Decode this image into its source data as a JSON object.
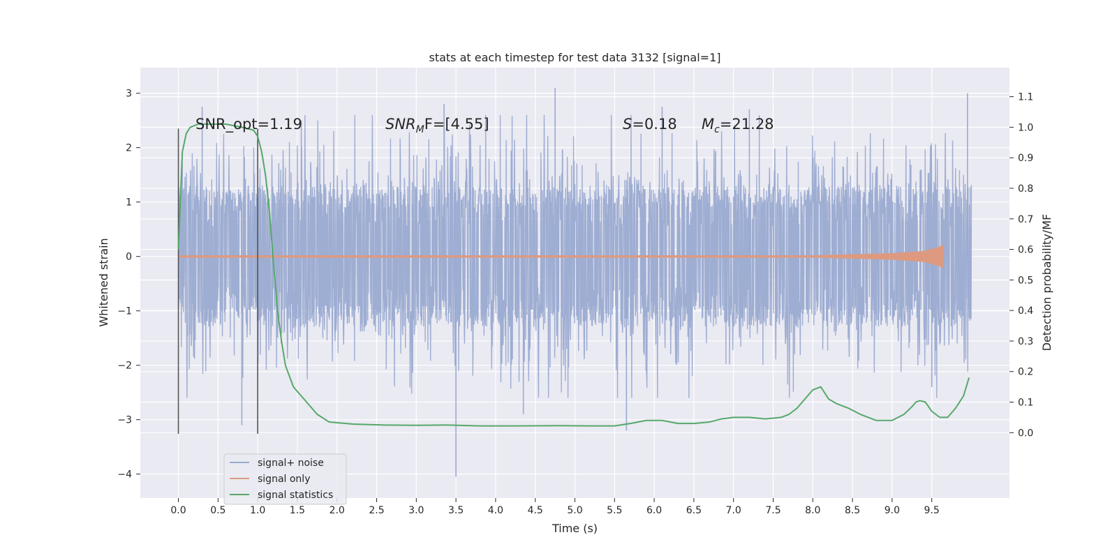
{
  "chart_data": {
    "type": "line",
    "title": "stats at each timestep for test data 3132 [signal=1]",
    "xlabel": "Time (s)",
    "ylabel": "Whitened strain",
    "y2label": "Detection probability/MF",
    "xlim": [
      -0.48,
      10.48
    ],
    "ylim": [
      -4.44,
      3.47
    ],
    "y2lim": [
      -0.214,
      1.195
    ],
    "x_ticks": [
      "0.0",
      "0.5",
      "1.0",
      "1.5",
      "2.0",
      "2.5",
      "3.0",
      "3.5",
      "4.0",
      "4.5",
      "5.0",
      "5.5",
      "6.0",
      "6.5",
      "7.0",
      "7.5",
      "8.0",
      "8.5",
      "9.0",
      "9.5"
    ],
    "x_tick_values": [
      0,
      0.5,
      1,
      1.5,
      2,
      2.5,
      3,
      3.5,
      4,
      4.5,
      5,
      5.5,
      6,
      6.5,
      7,
      7.5,
      8,
      8.5,
      9,
      9.5
    ],
    "y_ticks": [
      "3",
      "2",
      "1",
      "0",
      "−1",
      "−2",
      "−3",
      "−4"
    ],
    "y_tick_values": [
      3,
      2,
      1,
      0,
      -1,
      -2,
      -3,
      -4
    ],
    "y2_ticks": [
      "1.1",
      "1.0",
      "0.9",
      "0.8",
      "0.7",
      "0.6",
      "0.5",
      "0.4",
      "0.3",
      "0.2",
      "0.1",
      "0.0"
    ],
    "y2_tick_values": [
      1.1,
      1.0,
      0.9,
      0.8,
      0.7,
      0.6,
      0.5,
      0.4,
      0.3,
      0.2,
      0.1,
      0.0
    ],
    "grid": true,
    "legend_position": "lower-left",
    "annotations": {
      "snr_opt": "SNR_opt=1.19",
      "snr_mf_base": "SNR",
      "snr_mf_sub": "M",
      "snr_mf_rest": "F=[4.55]",
      "s_sym": "S",
      "s_val": "=0.18",
      "mc_sym": "M",
      "mc_sub": "c",
      "mc_val": "=21.28"
    },
    "vlines": [
      0.0,
      1.0
    ],
    "vline_range": [
      -3.26,
      2.35
    ],
    "series": [
      {
        "name": "signal+ noise",
        "color": "#9AAAD0",
        "x_range": [
          0.0,
          10.0
        ],
        "typical_envelope": [
          -1.3,
          1.3
        ],
        "peak_values": [
          {
            "x": 0.3,
            "y": 2.75
          },
          {
            "x": 0.8,
            "y": -3.1
          },
          {
            "x": 1.55,
            "y": 2.5
          },
          {
            "x": 3.35,
            "y": 2.8
          },
          {
            "x": 3.5,
            "y": -4.05
          },
          {
            "x": 4.35,
            "y": -2.9
          },
          {
            "x": 4.75,
            "y": 3.1
          },
          {
            "x": 5.65,
            "y": -3.2
          },
          {
            "x": 6.1,
            "y": 2.75
          },
          {
            "x": 7.2,
            "y": 2.7
          },
          {
            "x": 9.5,
            "y": -2.4
          },
          {
            "x": 9.95,
            "y": 3.0
          }
        ]
      },
      {
        "name": "signal only",
        "color": "#DD9A80",
        "x_range": [
          0.0,
          9.65
        ],
        "envelope_points": [
          [
            0.0,
            0.02
          ],
          [
            8.0,
            0.02
          ],
          [
            9.0,
            0.06
          ],
          [
            9.4,
            0.1
          ],
          [
            9.6,
            0.18
          ],
          [
            9.65,
            0.22
          ]
        ]
      },
      {
        "name": "signal statistics",
        "color": "#55A868",
        "x": [
          0,
          0.05,
          0.1,
          0.15,
          0.25,
          0.4,
          0.6,
          0.8,
          0.95,
          1.0,
          1.05,
          1.1,
          1.15,
          1.2,
          1.25,
          1.3,
          1.35,
          1.45,
          1.55,
          1.65,
          1.75,
          1.9,
          2.2,
          2.6,
          3.0,
          3.4,
          3.8,
          4.2,
          4.8,
          5.2,
          5.5,
          5.7,
          5.9,
          6.1,
          6.3,
          6.5,
          6.7,
          6.85,
          7.0,
          7.2,
          7.4,
          7.6,
          7.7,
          7.8,
          7.9,
          8.0,
          8.1,
          8.2,
          8.3,
          8.45,
          8.6,
          8.8,
          9.0,
          9.15,
          9.25,
          9.3,
          9.35,
          9.42,
          9.5,
          9.6,
          9.7,
          9.8,
          9.9,
          9.97
        ],
        "y": [
          0.6,
          0.92,
          0.98,
          1.0,
          1.01,
          1.01,
          1.01,
          1.0,
          0.99,
          0.97,
          0.92,
          0.84,
          0.72,
          0.55,
          0.4,
          0.3,
          0.22,
          0.15,
          0.12,
          0.09,
          0.06,
          0.035,
          0.028,
          0.025,
          0.024,
          0.025,
          0.022,
          0.022,
          0.023,
          0.022,
          0.022,
          0.03,
          0.04,
          0.04,
          0.03,
          0.03,
          0.035,
          0.045,
          0.05,
          0.05,
          0.045,
          0.05,
          0.06,
          0.08,
          0.11,
          0.14,
          0.15,
          0.11,
          0.095,
          0.08,
          0.06,
          0.04,
          0.04,
          0.06,
          0.085,
          0.1,
          0.105,
          0.1,
          0.07,
          0.05,
          0.05,
          0.08,
          0.12,
          0.18
        ]
      }
    ]
  }
}
